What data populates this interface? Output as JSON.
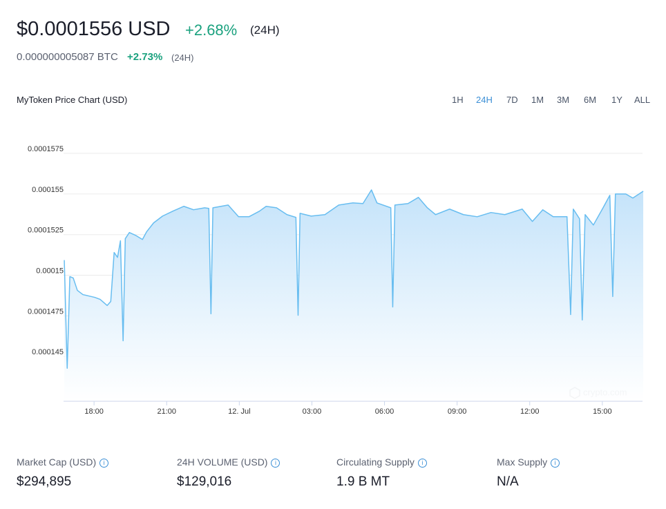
{
  "header": {
    "price": "$0.0001556 USD",
    "change": "+2.68%",
    "change_period": "(24H)",
    "btc_price": "0.000000005087 BTC",
    "btc_change": "+2.73%",
    "btc_change_period": "(24H)"
  },
  "range_buttons": [
    "1H",
    "24H",
    "7D",
    "1M",
    "3M",
    "6M",
    "1Y",
    "ALL"
  ],
  "active_range": "24H",
  "watermark": "crypto.com",
  "chart_data": {
    "type": "line",
    "title": "MyToken Price Chart (USD)",
    "color": "#67bdf0",
    "grid": true,
    "x": [
      16.77,
      16.89,
      17.0,
      17.14,
      17.31,
      17.54,
      17.77,
      18.03,
      18.25,
      18.54,
      18.69,
      18.83,
      18.97,
      19.09,
      19.2,
      19.29,
      19.46,
      19.71,
      20.0,
      20.17,
      20.46,
      20.83,
      21.25,
      21.71,
      22.11,
      22.57,
      22.74,
      22.83,
      22.91,
      23.54,
      23.97,
      24.4,
      24.83,
      25.11,
      25.54,
      25.97,
      26.34,
      26.43,
      26.51,
      26.97,
      27.54,
      28.11,
      28.69,
      29.11,
      29.46,
      29.69,
      30.26,
      30.34,
      30.43,
      30.97,
      31.4,
      31.77,
      32.11,
      32.69,
      33.26,
      33.83,
      34.4,
      34.97,
      35.69,
      36.11,
      36.54,
      36.97,
      37.54,
      37.69,
      37.8,
      38.06,
      38.17,
      38.29,
      38.63,
      39.03,
      39.31,
      39.43,
      39.54,
      39.97,
      40.26,
      40.69
    ],
    "values": [
      0.00015093,
      0.00014428,
      0.00014992,
      0.00014983,
      0.00014907,
      0.00014881,
      0.00014873,
      0.00014864,
      0.00014852,
      0.00014814,
      0.00014839,
      0.0001514,
      0.0001511,
      0.00015212,
      0.00014597,
      0.00015225,
      0.00015263,
      0.00015246,
      0.0001522,
      0.00015267,
      0.00015322,
      0.00015364,
      0.00015394,
      0.00015424,
      0.00015403,
      0.00015415,
      0.00015411,
      0.00014763,
      0.00015415,
      0.00015432,
      0.0001536,
      0.0001536,
      0.00015394,
      0.00015424,
      0.00015415,
      0.00015373,
      0.00015356,
      0.00014754,
      0.00015381,
      0.00015364,
      0.00015373,
      0.00015432,
      0.00015445,
      0.00015441,
      0.00015525,
      0.00015445,
      0.00015415,
      0.00014805,
      0.00015432,
      0.00015441,
      0.00015479,
      0.00015415,
      0.00015373,
      0.00015407,
      0.00015373,
      0.0001536,
      0.00015386,
      0.00015373,
      0.00015407,
      0.00015331,
      0.00015403,
      0.0001536,
      0.0001536,
      0.00014758,
      0.00015407,
      0.00015347,
      0.00014725,
      0.00015373,
      0.00015309,
      0.00015415,
      0.00015492,
      0.00014869,
      0.000155,
      0.000155,
      0.00015475,
      0.00015517
    ],
    "xlim": [
      16.74,
      40.66
    ],
    "xticks": [
      {
        "value": 18,
        "label": "18:00"
      },
      {
        "value": 21,
        "label": "21:00"
      },
      {
        "value": 24,
        "label": "12. Jul"
      },
      {
        "value": 27,
        "label": "03:00"
      },
      {
        "value": 30,
        "label": "06:00"
      },
      {
        "value": 33,
        "label": "09:00"
      },
      {
        "value": 36,
        "label": "12:00"
      },
      {
        "value": 39,
        "label": "15:00"
      }
    ],
    "ylim": [
      0.00014225,
      0.0001575
    ],
    "yticks": [
      0.000145,
      0.0001475,
      0.00015,
      0.0001525,
      0.000155,
      0.0001575
    ]
  },
  "stats": [
    {
      "label": "Market Cap (USD)",
      "value": "$294,895"
    },
    {
      "label": "24H VOLUME (USD)",
      "value": "$129,016"
    },
    {
      "label": "Circulating Supply",
      "value": "1.9 B MT"
    },
    {
      "label": "Max Supply",
      "value": "N/A"
    }
  ]
}
